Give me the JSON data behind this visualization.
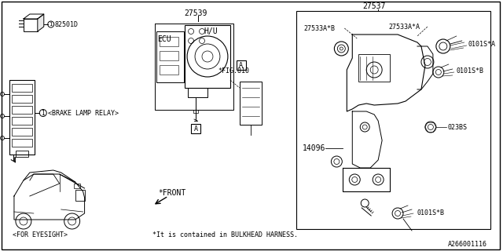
{
  "bg_color": "#ffffff",
  "diagram_number": "A266001116",
  "part_numbers": {
    "relay_small": "82501D",
    "hcu": "27539",
    "bracket_group": "27537",
    "bracket_sub_b": "27533A*B",
    "bracket_sub_a": "27533A*A",
    "harness": "14096",
    "bolt_a": "0101S*A",
    "bolt_b": "0101S*B",
    "nut": "023BS"
  },
  "labels": {
    "relay_label": "<BRAKE LAMP RELAY>",
    "eyesight_label": "<FOR EYESIGHT>",
    "ecu_label": "ECU",
    "hu_label": "H/U",
    "fig_label": "*FIG.810",
    "front_label": "*FRONT",
    "bulkhead_note": "*It is contained in BULKHEAD HARNESS.",
    "connector_a": "A"
  },
  "line_color": "#000000",
  "font_size": 7,
  "small_font_size": 6
}
